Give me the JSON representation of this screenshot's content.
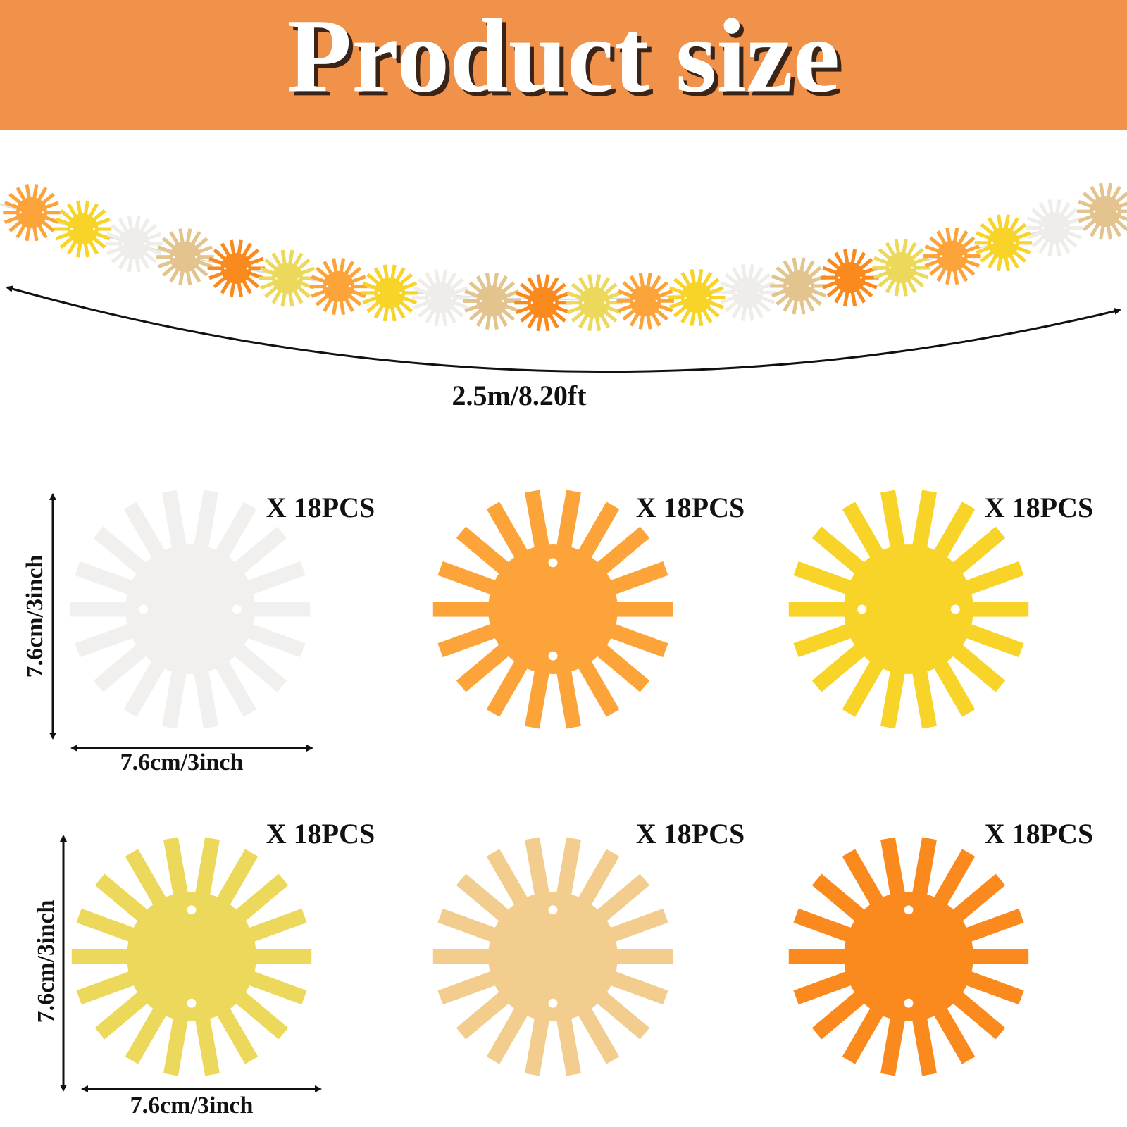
{
  "header": {
    "title": "Product size"
  },
  "garland": {
    "length_label": "2.5m/8.20ft"
  },
  "items": [
    {
      "count_label": "X 18PCS"
    },
    {
      "count_label": "X 18PCS"
    },
    {
      "count_label": "X 18PCS"
    },
    {
      "count_label": "X 18PCS"
    },
    {
      "count_label": "X 18PCS"
    },
    {
      "count_label": "X 18PCS"
    }
  ],
  "dimensions": [
    {
      "height_label": "7.6cm/3inch",
      "width_label": "7.6cm/3inch"
    },
    {
      "height_label": "7.6cm/3inch",
      "width_label": "7.6cm/3inch"
    }
  ]
}
